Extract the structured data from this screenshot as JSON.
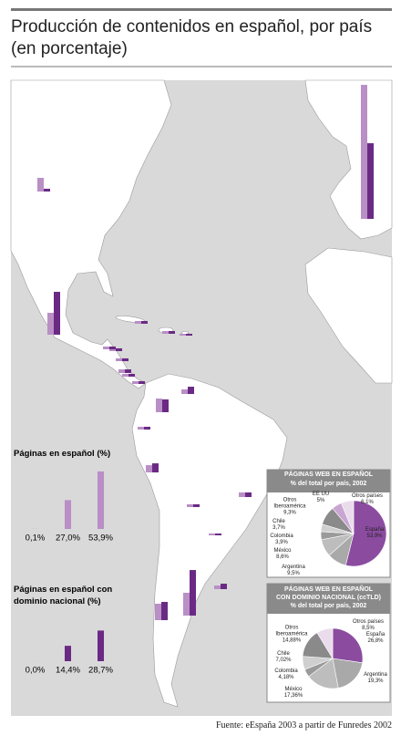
{
  "header": {
    "title": "Producción de contenidos en español, por país (en porcentaje)",
    "source": "Fuente: eEspaña 2003 a partir de Funredes 2002"
  },
  "chart_data": [
    {
      "type": "map-bar",
      "categories": [
        null,
        null,
        null,
        null,
        null,
        null,
        null,
        null,
        null,
        null,
        null,
        null,
        null,
        null,
        null,
        null,
        null,
        null,
        null,
        null,
        null,
        null
      ],
      "series": [
        {
          "color": "#b98fc6",
          "values": [
            12.8,
            125.6,
            20.5,
            2.6,
            2.6,
            1.7,
            2.6,
            2.6,
            2.6,
            3.4,
            2.6,
            2.6,
            4.3,
            12.8,
            2.6,
            6.8,
            4.3,
            2.6,
            1.7,
            15.4,
            21.4,
            3.4
          ]
        },
        {
          "color": "#6a2a84",
          "values": [
            2.6,
            70.9,
            40.2,
            2.6,
            2.6,
            1.7,
            2.6,
            2.6,
            2.6,
            3.4,
            2.6,
            2.6,
            6.8,
            12.0,
            2.6,
            8.5,
            4.3,
            2.6,
            1.7,
            17.1,
            42.7,
            5.1
          ]
        }
      ]
    },
    {
      "type": "bar",
      "title": "Páginas en español (%)",
      "categories": [
        null,
        null,
        null
      ],
      "values": [
        0.1,
        27.0,
        53.9
      ],
      "value_labels": [
        "0,1%",
        "27,0%",
        "53,9%"
      ],
      "color": "#b98fc6"
    },
    {
      "type": "bar",
      "title": "Páginas en español con dominio nacional (%)",
      "categories": [
        null,
        null,
        null
      ],
      "values": [
        0.0,
        14.4,
        28.7
      ],
      "value_labels": [
        "0,0%",
        "14,4%",
        "28,7%"
      ],
      "color": "#6a2a84"
    },
    {
      "type": "pie",
      "title": "PÁGINAS WEB EN ESPAÑOL",
      "subtitle": "% del total por país, 2002",
      "categories": [
        "España",
        "Argentina",
        "México",
        "Colombia",
        "Chile",
        "Otros\nIberoamérica",
        "EE UU",
        "Otros países"
      ],
      "values": [
        53.9,
        9.5,
        8.6,
        3.9,
        3.7,
        9.3,
        5,
        6.1
      ],
      "value_labels": [
        "53,9%",
        "9,5%",
        "8,6%",
        "3,9%",
        "3,7%",
        "9,3%",
        "5%",
        "6,1%"
      ],
      "colors": [
        "#8b4ca0",
        "#a9a9a9",
        "#bdbdbd",
        "#9a9a9a",
        "#cfcfcf",
        "#8a8a8a",
        "#c9a6d2",
        "#eadcec"
      ]
    },
    {
      "type": "pie",
      "title": "PÁGINAS WEB EN ESPAÑOL\nCON DOMINIO NACIONAL (ccTLD)",
      "subtitle": "% del total por país, 2002",
      "categories": [
        "España",
        "Argentina",
        "México",
        "Colombia",
        "Chile",
        "Otros\nIberoamérica",
        "Otros países"
      ],
      "values": [
        26.8,
        19.3,
        17.36,
        4.18,
        7.02,
        14.88,
        8.5
      ],
      "value_labels": [
        "26,8%",
        "19,3%",
        "17,36%",
        "4,18%",
        "7,02%",
        "14,88%",
        "8,5%"
      ],
      "colors": [
        "#8b4ca0",
        "#a9a9a9",
        "#bdbdbd",
        "#9a9a9a",
        "#cfcfcf",
        "#8a8a8a",
        "#eadcec"
      ]
    }
  ]
}
